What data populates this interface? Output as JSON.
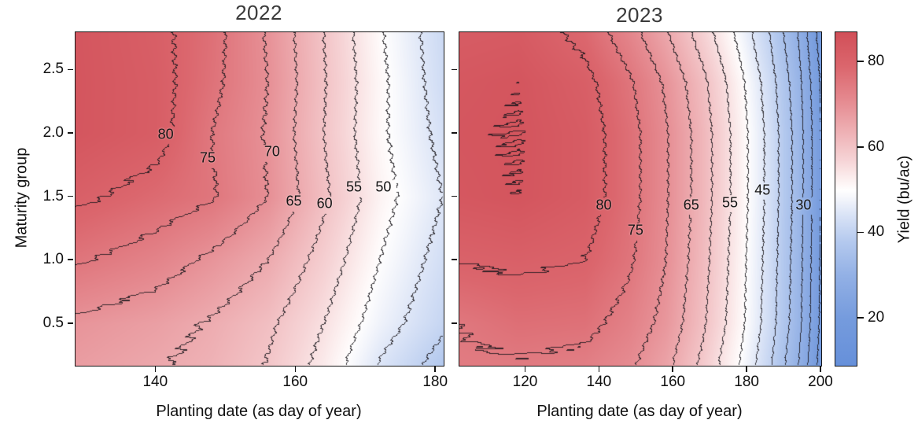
{
  "figure": {
    "ink_color": "#141414",
    "title_color": "#3a3a3a",
    "contour_line_color": "#1a171c"
  },
  "chart_data": [
    {
      "type": "contour-filled",
      "title": "2022",
      "xlabel": "Planting date (as day of year)",
      "ylabel": "Maturity group",
      "x_range": [
        128.5,
        181.1
      ],
      "y_range": [
        0.17,
        2.8
      ],
      "x_ticks": [
        140,
        160,
        180
      ],
      "y_ticks": [
        0.5,
        1.0,
        1.5,
        2.0,
        2.5
      ],
      "show_y_tick_labels": true,
      "contour_interval": 5,
      "x_nodes": [
        129,
        140,
        148,
        156,
        164,
        172,
        181
      ],
      "mg_nodes": [
        0.2,
        0.5,
        1.0,
        1.5,
        2.0,
        2.4,
        2.8
      ],
      "grid_yield": [
        [
          67.5,
          65.5,
          63.5,
          59.8,
          53.5,
          44.8,
          38.0
        ],
        [
          69.0,
          67.0,
          64.5,
          61.0,
          55.0,
          47.5,
          41.0
        ],
        [
          75.5,
          72.5,
          69.0,
          65.0,
          58.0,
          50.0,
          43.0
        ],
        [
          81.0,
          78.0,
          75.5,
          70.0,
          61.0,
          52.0,
          45.0
        ],
        [
          84.5,
          82.0,
          75.0,
          69.5,
          60.0,
          51.0,
          43.5
        ],
        [
          84.6,
          82.0,
          76.3,
          70.0,
          60.4,
          51.2,
          42.5
        ],
        [
          84.5,
          81.5,
          76.8,
          69.5,
          60.0,
          50.5,
          42.0
        ]
      ],
      "contour_labels": [
        {
          "text": "80",
          "day": 141.5,
          "mg": 1.99
        },
        {
          "text": "75",
          "day": 147.5,
          "mg": 1.8
        },
        {
          "text": "70",
          "day": 156.7,
          "mg": 1.85
        },
        {
          "text": "65",
          "day": 159.8,
          "mg": 1.46
        },
        {
          "text": "60",
          "day": 164.2,
          "mg": 1.44
        },
        {
          "text": "55",
          "day": 168.4,
          "mg": 1.57
        },
        {
          "text": "50",
          "day": 172.6,
          "mg": 1.57
        }
      ]
    },
    {
      "type": "contour-filled",
      "title": "2023",
      "xlabel": "Planting date (as day of year)",
      "ylabel": "",
      "x_range": [
        102,
        200
      ],
      "y_range": [
        0.17,
        2.8
      ],
      "x_ticks": [
        120,
        140,
        160,
        180,
        200
      ],
      "y_ticks": [
        0.5,
        1.0,
        1.5,
        2.0,
        2.5
      ],
      "show_y_tick_labels": false,
      "contour_interval": 5,
      "x_nodes": [
        102,
        118,
        136,
        148,
        158,
        168,
        178,
        186,
        194,
        200
      ],
      "mg_nodes": [
        0.2,
        0.5,
        1.0,
        1.5,
        2.0,
        2.4,
        2.8
      ],
      "grid_yield": [
        [
          74.3,
          74.7,
          73.8,
          71.0,
          66.5,
          59.0,
          50.0,
          41.0,
          30.0,
          18.0
        ],
        [
          75.1,
          77.0,
          76.5,
          73.0,
          68.5,
          60.8,
          51.5,
          42.5,
          31.5,
          19.0
        ],
        [
          80.3,
          81.0,
          80.0,
          75.8,
          70.0,
          61.8,
          52.0,
          43.0,
          32.0,
          19.5
        ],
        [
          84.0,
          84.9,
          82.5,
          77.0,
          70.5,
          62.5,
          52.5,
          43.5,
          32.5,
          20.0
        ],
        [
          84.5,
          85.05,
          82.5,
          77.0,
          70.5,
          62.5,
          52.5,
          43.5,
          32.5,
          20.0
        ],
        [
          84.0,
          84.8,
          81.5,
          75.8,
          69.3,
          61.3,
          51.5,
          42.5,
          31.5,
          19.5
        ],
        [
          82.5,
          83.0,
          78.5,
          72.0,
          65.5,
          57.5,
          48.5,
          40.0,
          29.5,
          17.5
        ]
      ],
      "contour_labels": [
        {
          "text": "80",
          "day": 141.3,
          "mg": 1.43
        },
        {
          "text": "75",
          "day": 149.9,
          "mg": 1.23
        },
        {
          "text": "65",
          "day": 165.0,
          "mg": 1.43
        },
        {
          "text": "55",
          "day": 175.5,
          "mg": 1.45
        },
        {
          "text": "45",
          "day": 184.3,
          "mg": 1.55
        },
        {
          "text": "30",
          "day": 195.4,
          "mg": 1.43
        }
      ]
    }
  ],
  "colorbar": {
    "label": "Yield (bu/ac)",
    "range": [
      9,
      87
    ],
    "ticks": [
      20,
      40,
      60,
      80
    ],
    "stops": [
      [
        9,
        "#6690da"
      ],
      [
        20,
        "#759bdd"
      ],
      [
        30,
        "#92b0e5"
      ],
      [
        38,
        "#b4c9ee"
      ],
      [
        44,
        "#d8e2f6"
      ],
      [
        48,
        "#f3f5fb"
      ],
      [
        50,
        "#fffefe"
      ],
      [
        52.5,
        "#fcf0f0"
      ],
      [
        57,
        "#f6d4d6"
      ],
      [
        64,
        "#eeafb3"
      ],
      [
        71,
        "#e58a90"
      ],
      [
        79,
        "#db666d"
      ],
      [
        87,
        "#d14f58"
      ]
    ]
  }
}
